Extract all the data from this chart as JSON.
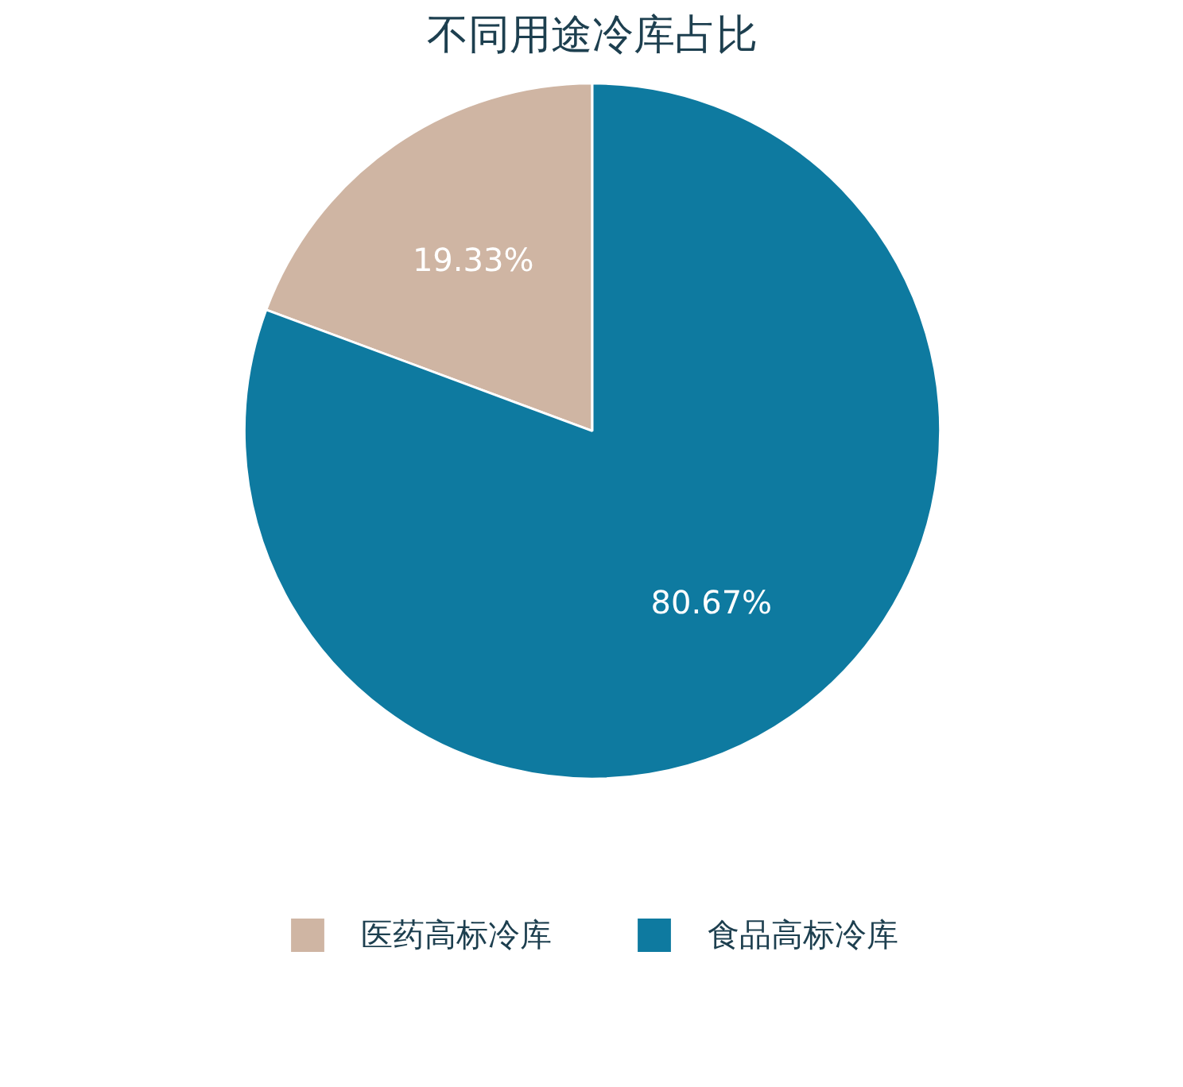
{
  "chart_data": {
    "type": "pie",
    "title": "不同用途冷库占比",
    "categories": [
      "医药高标冷库",
      "食品高标冷库"
    ],
    "values": [
      19.33,
      80.67
    ],
    "colors": [
      "#cfb5a3",
      "#0e7aa0"
    ],
    "value_labels": [
      "19.33%",
      "80.67%"
    ],
    "legend": "bottom"
  }
}
